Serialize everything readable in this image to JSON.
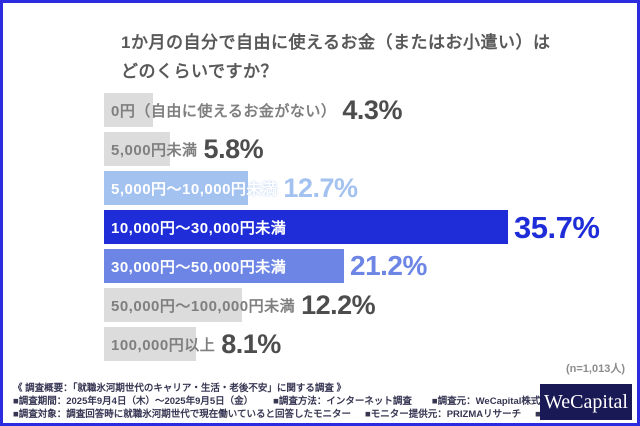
{
  "title": {
    "line1": "1か月の自分で自由に使えるお金（またはお小遣い）は",
    "line2": "どのくらいですか？"
  },
  "chart_data": {
    "type": "bar",
    "orientation": "horizontal",
    "title": "1か月の自分で自由に使えるお金（またはお小遣い）はどのくらいですか？",
    "unit": "%",
    "xlim": [
      0,
      38
    ],
    "grid": false,
    "legend": "none",
    "sample_size_note": "(n=1,013人)",
    "categories": [
      "0円（自由に使えるお金がない）",
      "5,000円未満",
      "5,000円～10,000円未満",
      "10,000円～30,000円未満",
      "30,000円～50,000円未満",
      "50,000円～100,000円未満",
      "100,000円以上"
    ],
    "values": [
      4.3,
      5.8,
      12.7,
      35.7,
      21.2,
      12.2,
      8.1
    ],
    "value_labels": [
      "4.3%",
      "5.8%",
      "12.7%",
      "35.7%",
      "21.2%",
      "12.2%",
      "8.1%"
    ],
    "bar_styles": [
      "gray",
      "gray",
      "lightblue",
      "darkblue",
      "midblue",
      "gray",
      "gray"
    ],
    "colors": {
      "gray_bar": "#dcdcdc",
      "lightblue_bar": "#a3c2f0",
      "darkblue_bar": "#1e2dd8",
      "midblue_bar": "#6d85e4",
      "gray_label": "#7f7f7f",
      "gray_value": "#4d4d4d",
      "white_label": "#ffffff"
    }
  },
  "footer": {
    "line1": "《 調査概要：「就職氷河期世代のキャリア・生活・老後不安」に関する調査 》",
    "line2_items": [
      "■調査期間：2025年9月4日（木）～2025年9月5日（金）",
      "■調査方法：インターネット調査",
      "■調査元：WeCapital株式会社"
    ],
    "line3_items": [
      "■調査対象：調査回答時に就職氷河期世代で現在働いていると回答したモニター",
      "■モニター提供元：PRIZMAリサーチ",
      "■調査人数：1,013人"
    ],
    "logo_text": "WeCapital"
  }
}
